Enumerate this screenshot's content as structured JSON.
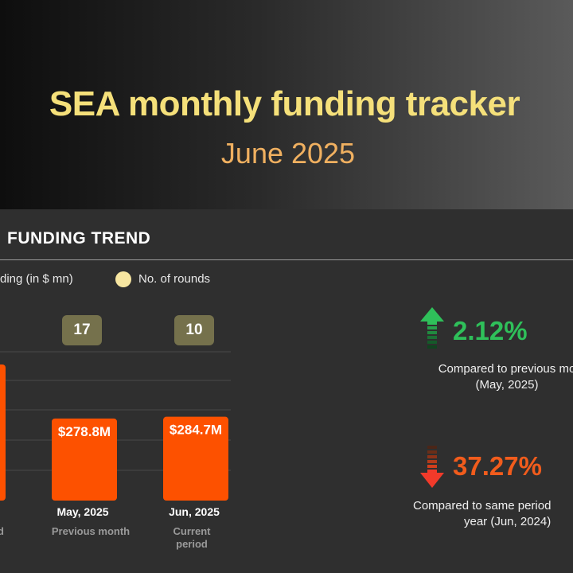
{
  "header": {
    "title": "SEA monthly funding tracker",
    "subtitle": "June 2025"
  },
  "section": {
    "title": "FUNDING TREND"
  },
  "legend": {
    "funding_label": "ding (in $ mn)",
    "rounds_label": "No. of rounds"
  },
  "chart_data": {
    "type": "bar",
    "categories": [
      "",
      "May, 2025",
      "Jun, 2025"
    ],
    "category_notes": [
      "d",
      "Previous month",
      "Current period"
    ],
    "series": [
      {
        "name": "Funding (in $ mn)",
        "values": [
          null,
          278.8,
          284.7
        ],
        "labels": [
          "",
          "$278.8M",
          "$284.7M"
        ]
      },
      {
        "name": "No. of rounds",
        "values": [
          null,
          17,
          10
        ]
      }
    ],
    "colors": {
      "bar": "#fd5100",
      "rounds_badge": "#75714c",
      "rounds_dot": "#f7e6a1"
    },
    "grid": true
  },
  "stats": {
    "mom": {
      "value": "2.12%",
      "direction": "up",
      "color": "#2fc05a",
      "note_line1": "Compared to previous mo",
      "note_line2": "(May, 2025)"
    },
    "yoy": {
      "value": "37.27%",
      "direction": "down",
      "color": "#f25c1c",
      "note_line1": "Compared to same period",
      "note_line2": "year (Jun, 2024)"
    }
  }
}
